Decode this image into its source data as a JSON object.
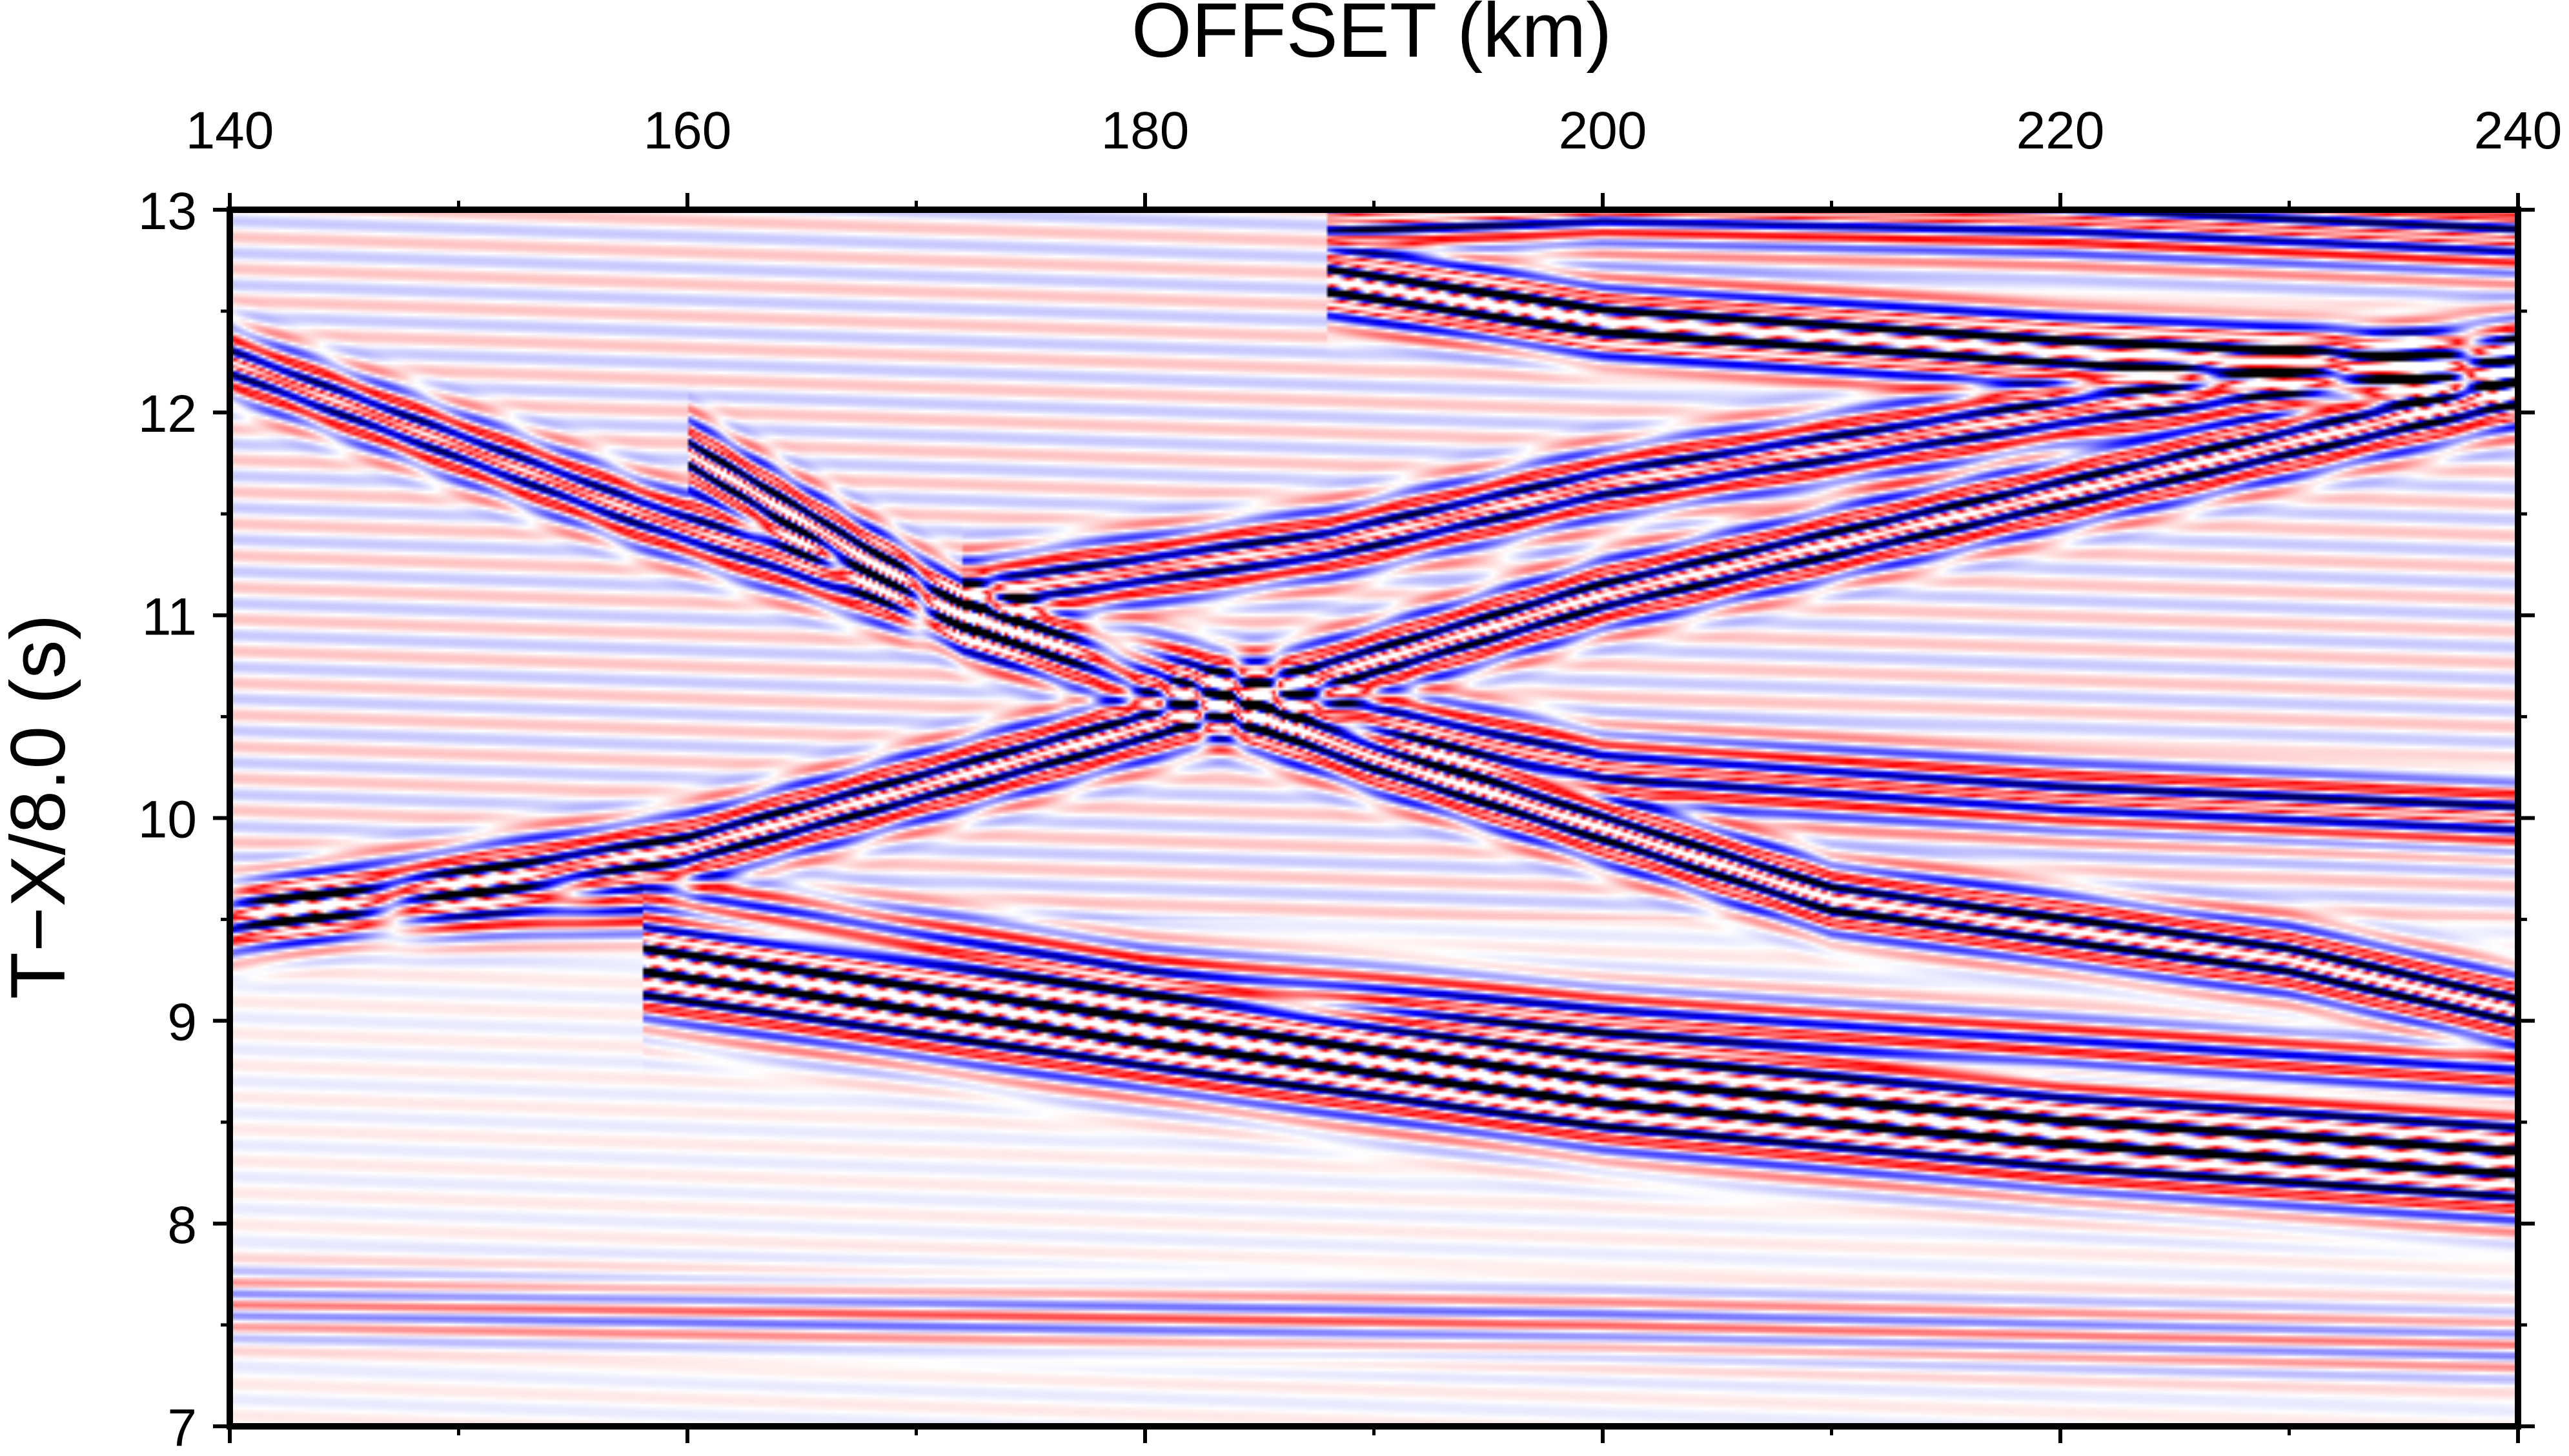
{
  "chart_data": {
    "type": "heatmap",
    "title": "",
    "xlabel": "OFFSET (km)",
    "ylabel": "T−X/8.0 (s)",
    "xlim": [
      140,
      240
    ],
    "ylim": [
      7,
      13
    ],
    "x_ticks": [
      140,
      160,
      180,
      200,
      220,
      240
    ],
    "x_tick_labels": [
      "140",
      "160",
      "180",
      "200",
      "220",
      "240"
    ],
    "y_ticks": [
      7,
      8,
      9,
      10,
      11,
      12,
      13
    ],
    "y_tick_labels": [
      "7",
      "8",
      "9",
      "10",
      "11",
      "12",
      "13"
    ],
    "x_axis_position": "top",
    "colormap": [
      "#000000",
      "#0000ff",
      "#ffffff",
      "#ff0000",
      "#ffffff"
    ],
    "grid": false,
    "arrivals": [
      {
        "name": "first-arrival",
        "x": [
          158,
          180,
          200,
          220,
          240
        ],
        "y": [
          9.3,
          8.95,
          8.65,
          8.45,
          8.3
        ],
        "strength": 1.0,
        "cycles": 3
      },
      {
        "name": "first-arrival-2",
        "x": [
          140,
          158,
          180,
          200,
          220,
          240
        ],
        "y": [
          9.55,
          9.6,
          9.2,
          9.0,
          8.85,
          8.7
        ],
        "strength": 0.45,
        "cycles": 2
      },
      {
        "name": "mid-branch-down",
        "x": [
          140,
          160,
          180,
          200,
          220,
          240
        ],
        "y": [
          9.5,
          9.85,
          10.45,
          11.1,
          11.6,
          12.1
        ],
        "strength": 0.7,
        "cycles": 2
      },
      {
        "name": "mid-branch-up",
        "x": [
          160,
          172,
          190,
          210,
          230,
          240
        ],
        "y": [
          11.8,
          11.0,
          10.3,
          9.6,
          9.3,
          9.05
        ],
        "strength": 0.75,
        "cycles": 2
      },
      {
        "name": "crossing-branch",
        "x": [
          140,
          158,
          172,
          185,
          200,
          220,
          240
        ],
        "y": [
          12.25,
          11.5,
          11.0,
          10.6,
          10.25,
          10.1,
          10.0
        ],
        "strength": 0.55,
        "cycles": 2
      },
      {
        "name": "late-arrival",
        "x": [
          172,
          188,
          200,
          220,
          240
        ],
        "y": [
          11.1,
          11.35,
          11.65,
          12.0,
          12.3
        ],
        "strength": 0.6,
        "cycles": 2
      },
      {
        "name": "late-branch-down",
        "x": [
          188,
          200,
          220,
          240
        ],
        "y": [
          12.65,
          12.45,
          12.3,
          12.2
        ],
        "strength": 0.95,
        "cycles": 2
      },
      {
        "name": "late-branch-up",
        "x": [
          188,
          200,
          220,
          240
        ],
        "y": [
          12.95,
          13.0,
          12.95,
          12.85
        ],
        "strength": 0.6,
        "cycles": 2
      },
      {
        "name": "precursor",
        "x": [
          140,
          170,
          200,
          240
        ],
        "y": [
          7.6,
          7.55,
          7.5,
          7.4
        ],
        "strength": 0.2,
        "cycles": 2
      }
    ]
  }
}
